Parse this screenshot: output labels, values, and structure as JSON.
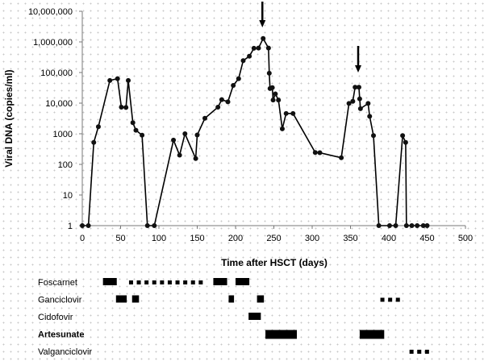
{
  "chart_data": {
    "type": "line",
    "xlabel": "Time after HSCT (days)",
    "ylabel": "Viral DNA (copies/ml)",
    "xlim": [
      0,
      500
    ],
    "ylim": [
      1,
      10000000
    ],
    "yscale": "log",
    "x_ticks": [
      "0",
      "50",
      "100",
      "150",
      "200",
      "250",
      "300",
      "350",
      "400",
      "450",
      "500"
    ],
    "x_tick_values": [
      0,
      50,
      100,
      150,
      200,
      250,
      300,
      350,
      400,
      450,
      500
    ],
    "y_ticks": [
      "1",
      "10",
      "100",
      "1000",
      "10,000",
      "100,000",
      "1,000,000",
      "10,000,000"
    ],
    "y_tick_values": [
      1,
      10,
      100,
      1000,
      10000,
      100000,
      1000000,
      10000000
    ],
    "grid": false,
    "series": [
      {
        "name": "Viral DNA",
        "x": [
          0,
          8,
          15,
          21,
          36,
          46,
          51,
          57,
          60,
          66,
          70,
          78,
          85,
          94,
          119,
          127,
          134,
          148,
          150,
          160,
          177,
          182,
          190,
          197,
          204,
          210,
          218,
          224,
          230,
          236,
          243,
          244,
          245,
          248,
          249,
          252,
          256,
          261,
          266,
          275,
          304,
          310,
          338,
          348,
          353,
          356,
          361,
          362,
          363,
          373,
          375,
          380,
          387,
          401,
          409,
          418,
          422,
          423,
          430,
          437,
          445,
          450
        ],
        "y": [
          1,
          1,
          520,
          1700,
          55000,
          63000,
          7400,
          7200,
          55000,
          2300,
          1300,
          900,
          1,
          1,
          620,
          200,
          1000,
          155,
          910,
          3200,
          7400,
          13000,
          11000,
          38000,
          63000,
          245000,
          340000,
          620000,
          630000,
          1290000,
          630000,
          95000,
          30000,
          32000,
          12600,
          20000,
          12600,
          1450,
          4600,
          4600,
          245,
          240,
          165,
          9800,
          11500,
          33000,
          33000,
          13800,
          6600,
          9800,
          3700,
          870,
          1,
          1,
          1,
          870,
          520,
          1,
          1,
          1,
          1,
          1
        ]
      }
    ],
    "annotations": [
      {
        "type": "arrow",
        "x": 235,
        "label": ""
      },
      {
        "type": "arrow",
        "x": 360,
        "label": ""
      }
    ],
    "treatments": [
      {
        "name": "Foscarnet",
        "bold": false,
        "periods": [
          {
            "start": 27,
            "end": 45,
            "style": "solid"
          },
          {
            "start": 61,
            "end": 156,
            "style": "dotted"
          },
          {
            "start": 171,
            "end": 189,
            "style": "solid"
          },
          {
            "start": 200,
            "end": 218,
            "style": "solid"
          }
        ]
      },
      {
        "name": "Ganciclovir",
        "bold": false,
        "periods": [
          {
            "start": 44,
            "end": 58,
            "style": "solid"
          },
          {
            "start": 65,
            "end": 74,
            "style": "solid"
          },
          {
            "start": 191,
            "end": 198,
            "style": "solid"
          },
          {
            "start": 228,
            "end": 237,
            "style": "solid"
          },
          {
            "start": 389,
            "end": 415,
            "style": "dotted"
          }
        ]
      },
      {
        "name": "Cidofovir",
        "bold": false,
        "periods": [
          {
            "start": 217,
            "end": 233,
            "style": "solid"
          }
        ]
      },
      {
        "name": "Artesunate",
        "bold": true,
        "periods": [
          {
            "start": 239,
            "end": 280,
            "style": "solid"
          },
          {
            "start": 362,
            "end": 394,
            "style": "solid"
          }
        ]
      },
      {
        "name": "Valganciclovir",
        "bold": false,
        "periods": [
          {
            "start": 427,
            "end": 453,
            "style": "dotted"
          }
        ]
      }
    ]
  }
}
